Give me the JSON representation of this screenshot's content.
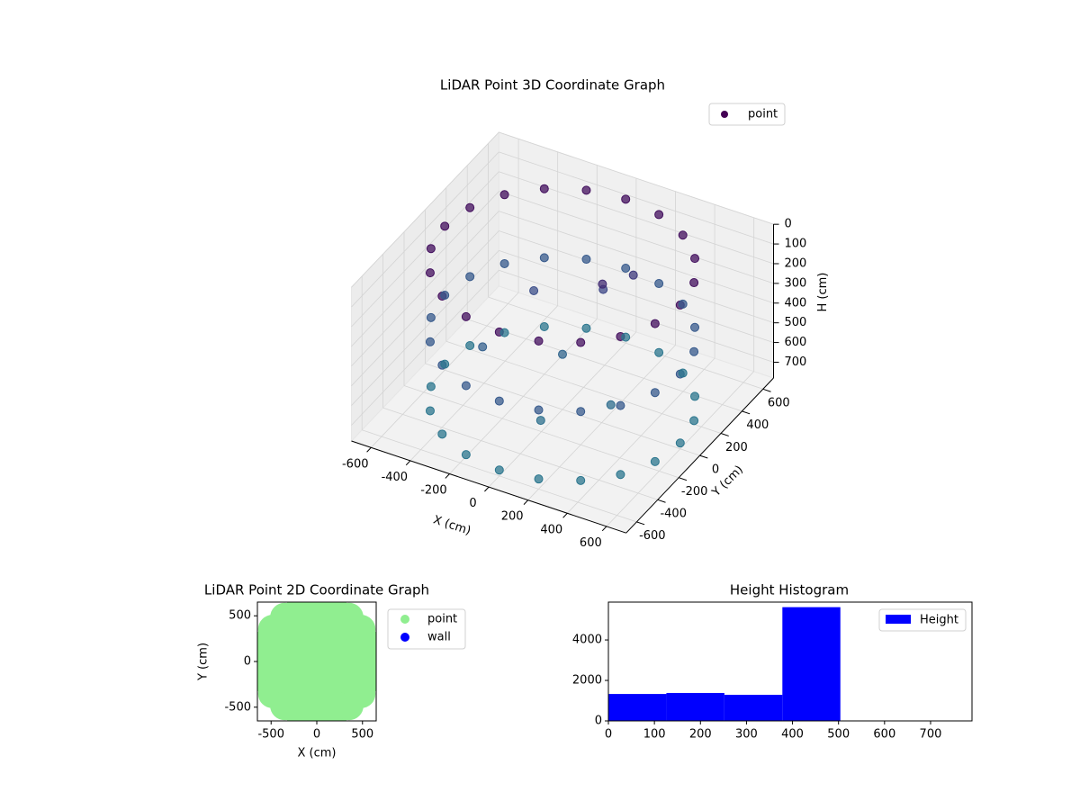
{
  "chart_data": [
    {
      "type": "scatter3d",
      "title": "LiDAR Point 3D Coordinate Graph",
      "xlabel": "X (cm)",
      "ylabel": "Y (cm)",
      "zlabel": "H (cm)",
      "xlim": [
        -700,
        700
      ],
      "ylim": [
        -700,
        700
      ],
      "zlim": [
        0,
        780
      ],
      "zinvert": true,
      "xticks": [
        -600,
        -400,
        -200,
        0,
        200,
        400,
        600
      ],
      "yticks": [
        -600,
        -400,
        -200,
        0,
        200,
        400,
        600
      ],
      "zticks": [
        0,
        100,
        200,
        300,
        400,
        500,
        600,
        700
      ],
      "grid": true,
      "legend": "upper right",
      "colormap": [
        "#440154",
        "#3e4a89",
        "#31688e",
        "#2a788e"
      ],
      "series": [
        {
          "name": "point",
          "color": "#440154",
          "x": [
            600,
            571,
            485,
            353,
            185,
            0,
            -185,
            -353,
            -485,
            -571,
            -600,
            -571,
            -485,
            -353,
            -185,
            0,
            185,
            353,
            485,
            571,
            600,
            571,
            485,
            353,
            185,
            0,
            -185,
            -353,
            -485,
            -571,
            -600,
            -571,
            -485,
            -353,
            -185,
            0,
            185,
            353,
            485,
            571,
            600,
            571,
            485,
            353,
            185,
            0,
            -185,
            -353,
            -485,
            -571,
            -600,
            -571,
            -485,
            -353,
            -185,
            0,
            185,
            353,
            485,
            571,
            100,
            200,
            -200,
            0,
            300,
            -300,
            150,
            50
          ],
          "y": [
            0,
            185,
            353,
            485,
            571,
            600,
            571,
            485,
            353,
            185,
            0,
            -185,
            -353,
            -485,
            -571,
            -600,
            -571,
            -485,
            -353,
            -185,
            0,
            185,
            353,
            485,
            571,
            600,
            571,
            485,
            353,
            185,
            0,
            -185,
            -353,
            -485,
            -571,
            -600,
            -571,
            -485,
            -353,
            -185,
            0,
            185,
            353,
            485,
            571,
            600,
            571,
            485,
            353,
            185,
            0,
            -185,
            -353,
            -485,
            -571,
            -600,
            -571,
            -485,
            -353,
            -185,
            200,
            300,
            100,
            0,
            -100,
            -200,
            100,
            -300
          ],
          "z": [
            50,
            50,
            50,
            50,
            50,
            50,
            50,
            50,
            50,
            50,
            50,
            50,
            50,
            50,
            50,
            50,
            50,
            50,
            50,
            50,
            400,
            400,
            400,
            400,
            400,
            400,
            400,
            400,
            400,
            400,
            400,
            400,
            400,
            400,
            400,
            400,
            400,
            400,
            400,
            400,
            750,
            750,
            750,
            750,
            750,
            750,
            750,
            750,
            750,
            750,
            750,
            750,
            750,
            750,
            750,
            750,
            750,
            750,
            750,
            750,
            250,
            200,
            300,
            500,
            600,
            450,
            150,
            650
          ]
        }
      ]
    },
    {
      "type": "scatter",
      "title": "LiDAR Point 2D Coordinate Graph",
      "xlabel": "X (cm)",
      "ylabel": "Y (cm)",
      "xlim": [
        -650,
        650
      ],
      "ylim": [
        -650,
        650
      ],
      "xticks": [
        -500,
        0,
        500
      ],
      "yticks": [
        -500,
        0,
        500
      ],
      "legend": "outside upper right",
      "series": [
        {
          "name": "point",
          "color": "#90ee90",
          "x": [
            600,
            571,
            485,
            353,
            185,
            0,
            -185,
            -353,
            -485,
            -571,
            -600,
            -571,
            -485,
            -353,
            -185,
            0,
            185,
            353,
            485,
            571,
            400,
            346,
            200,
            0,
            -200,
            -346,
            -400,
            -346,
            -200,
            0,
            200,
            346,
            200,
            100,
            -100,
            -200,
            -100,
            100,
            0
          ],
          "y": [
            0,
            185,
            353,
            485,
            571,
            600,
            571,
            485,
            353,
            185,
            0,
            -185,
            -353,
            -485,
            -571,
            -600,
            -571,
            -485,
            -353,
            -185,
            0,
            200,
            346,
            400,
            346,
            200,
            0,
            -200,
            -346,
            -400,
            -346,
            -200,
            0,
            173,
            173,
            0,
            -173,
            -173,
            0
          ]
        },
        {
          "name": "wall",
          "color": "#0000ff",
          "x": [],
          "y": []
        }
      ]
    },
    {
      "type": "histogram",
      "title": "Height Histogram",
      "bins": [
        0,
        126,
        252,
        378,
        504,
        630,
        756
      ],
      "values": [
        1330,
        1380,
        1290,
        5620,
        0,
        0
      ],
      "series_name": "Height",
      "color": "#0000ff",
      "xlim": [
        0,
        790
      ],
      "ylim": [
        0,
        5870
      ],
      "xticks": [
        0,
        100,
        200,
        300,
        400,
        500,
        600,
        700
      ],
      "yticks": [
        0,
        2000,
        4000
      ],
      "legend": "upper right"
    }
  ]
}
